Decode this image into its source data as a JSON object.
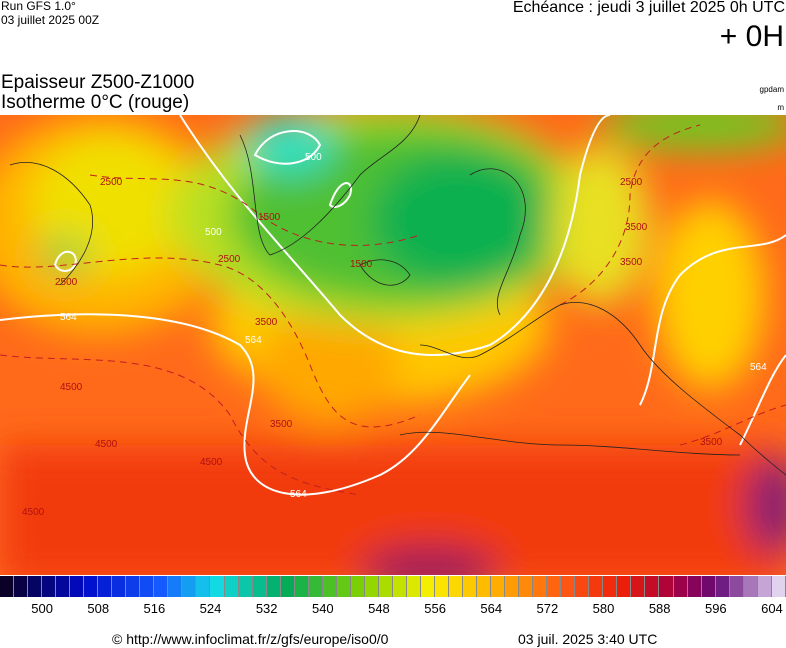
{
  "header": {
    "run": "Run GFS 1.0°",
    "run_date": "03 juillet 2025 00Z",
    "echeance": "Echéance : jeudi 3 juillet 2025 0h UTC",
    "offset": "+ 0H"
  },
  "title": {
    "line1": "Epaisseur Z500-Z1000",
    "line2": "Isotherme 0°C (rouge)",
    "unit1": "gpdam",
    "unit2": "m"
  },
  "map": {
    "contour_labels": [
      "2500",
      "2500",
      "2500",
      "1500",
      "1500",
      "500",
      "564",
      "564",
      "564",
      "3500",
      "3500",
      "3500",
      "3500",
      "4500",
      "4500",
      "4500",
      "4500",
      "2500",
      "3500",
      "564",
      "500"
    ]
  },
  "colorbar": {
    "labels": [
      "500",
      "508",
      "516",
      "524",
      "532",
      "540",
      "548",
      "556",
      "564",
      "572",
      "580",
      "588",
      "596",
      "604"
    ]
  },
  "footer": {
    "source": "© http://www.infoclimat.fr/z/gfs/europe/iso0/0",
    "timestamp": "03 juil. 2025  3:40 UTC"
  }
}
